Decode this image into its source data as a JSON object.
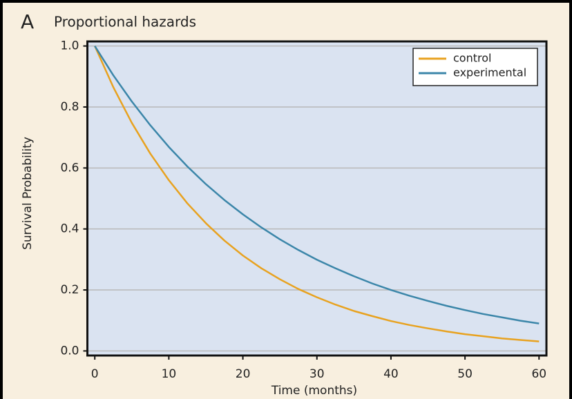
{
  "chart_data": {
    "type": "line",
    "panel_label": "A",
    "title": "Proportional hazards",
    "x_label": "Time (months)",
    "y_label": "Survival Probability",
    "x": [
      0,
      2.5,
      5,
      7.5,
      10,
      12.5,
      15,
      17.5,
      20,
      22.5,
      25,
      27.5,
      30,
      32.5,
      35,
      37.5,
      40,
      42.5,
      45,
      47.5,
      50,
      52.5,
      55,
      57.5,
      60
    ],
    "series": [
      {
        "name": "control",
        "color": "#e8a21f",
        "values": [
          1,
          0.865,
          0.748,
          0.647,
          0.56,
          0.484,
          0.419,
          0.362,
          0.313,
          0.271,
          0.235,
          0.203,
          0.176,
          0.152,
          0.131,
          0.114,
          0.098,
          0.085,
          0.074,
          0.064,
          0.055,
          0.048,
          0.041,
          0.036,
          0.031
        ]
      },
      {
        "name": "experimental",
        "color": "#3b86a9",
        "values": [
          1,
          0.904,
          0.818,
          0.74,
          0.669,
          0.605,
          0.547,
          0.495,
          0.448,
          0.405,
          0.366,
          0.331,
          0.299,
          0.271,
          0.245,
          0.221,
          0.2,
          0.181,
          0.164,
          0.148,
          0.134,
          0.121,
          0.11,
          0.099,
          0.09
        ]
      }
    ],
    "xlim": [
      -1,
      61
    ],
    "xticks": [
      0,
      10,
      20,
      30,
      40,
      50,
      60
    ],
    "ylim": [
      -0.015,
      1.015
    ],
    "yticks": [
      {
        "value": 0,
        "label": "0.0"
      },
      0.2,
      0.4,
      0.6,
      0.8,
      {
        "value": 1,
        "label": "1.0"
      }
    ],
    "grid": true,
    "legend": "upper right"
  }
}
